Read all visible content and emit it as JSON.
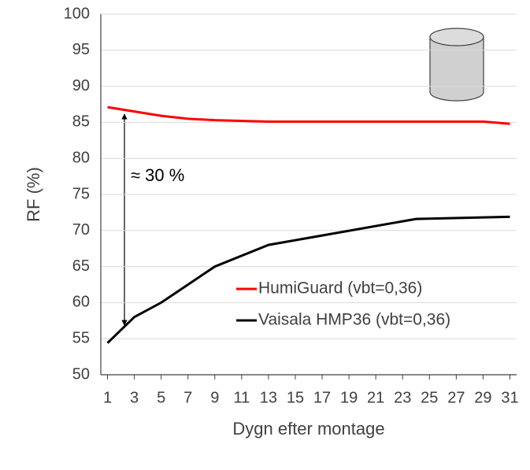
{
  "chart_data": {
    "type": "line",
    "x_label": "Dygn efter montage",
    "y_label": "RF (%)",
    "annotation": "≈ 30 %",
    "xlim": [
      0.5,
      31.5
    ],
    "xticks": [
      1,
      3,
      5,
      7,
      9,
      11,
      13,
      15,
      17,
      19,
      21,
      23,
      25,
      27,
      29,
      31
    ],
    "ylim": [
      50,
      100
    ],
    "yticks": [
      50,
      55,
      60,
      65,
      70,
      75,
      80,
      85,
      90,
      95,
      100
    ],
    "grid": true,
    "legend": "lower right",
    "series": [
      {
        "name": "HumiGuard (vbt=0,36)",
        "color": "#ff0000",
        "x": [
          1,
          3,
          5,
          7,
          9,
          13,
          24,
          29,
          31
        ],
        "values": [
          87.1,
          86.5,
          85.9,
          85.5,
          85.3,
          85.1,
          85.1,
          85.1,
          84.8
        ]
      },
      {
        "name": "Vaisala HMP36 (vbt=0,36)",
        "color": "#000000",
        "x": [
          1,
          3,
          5,
          9,
          13,
          24,
          31
        ],
        "values": [
          54.4,
          58,
          60,
          65,
          68,
          71.6,
          71.9
        ]
      }
    ]
  }
}
